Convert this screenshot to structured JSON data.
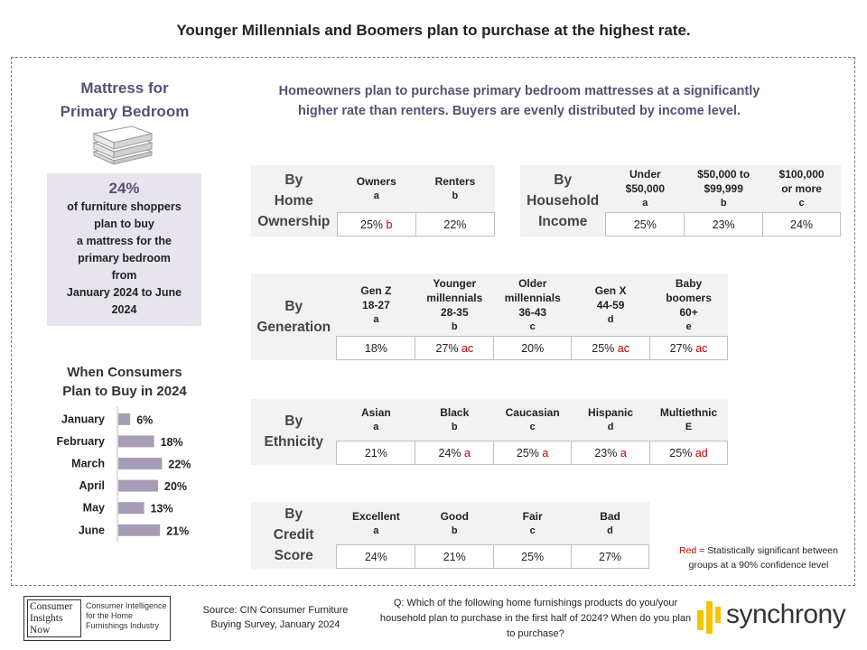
{
  "title": "Younger Millennials and Boomers plan to purchase at the highest rate.",
  "left_panel": {
    "title_line1": "Mattress for",
    "title_line2": "Primary  Bedroom",
    "stat_pct": "24%",
    "stat_text": "of furniture shoppers\nplan to buy\na mattress for the\nprimary bedroom\nfrom\nJanuary 2024 to June\n2024",
    "timing_title_line1": "When Consumers",
    "timing_title_line2": "Plan to Buy in 2024"
  },
  "headline_line1": "Homeowners plan to purchase primary bedroom mattresses at a significantly",
  "headline_line2": "higher rate than renters. Buyers are evenly distributed by income level.",
  "tables": {
    "ownership": {
      "label": [
        "By",
        "Home",
        "Ownership"
      ],
      "cols": [
        {
          "name": [
            "Owners"
          ],
          "letter": "a",
          "value": "25%",
          "sig": "b"
        },
        {
          "name": [
            "Renters"
          ],
          "letter": "b",
          "value": "22%",
          "sig": ""
        }
      ]
    },
    "income": {
      "label": [
        "By",
        "Household",
        "Income"
      ],
      "cols": [
        {
          "name": [
            "Under",
            "$50,000"
          ],
          "letter": "a",
          "value": "25%",
          "sig": ""
        },
        {
          "name": [
            "$50,000  to",
            "$99,999"
          ],
          "letter": "b",
          "value": "23%",
          "sig": ""
        },
        {
          "name": [
            "$100,000",
            "or more"
          ],
          "letter": "c",
          "value": "24%",
          "sig": ""
        }
      ]
    },
    "generation": {
      "label": [
        "By",
        "Generation"
      ],
      "cols": [
        {
          "name": [
            "Gen Z",
            "18-27"
          ],
          "letter": "a",
          "value": "18%",
          "sig": ""
        },
        {
          "name": [
            "Younger",
            "millennials",
            "28-35"
          ],
          "letter": "b",
          "value": "27%",
          "sig": "ac"
        },
        {
          "name": [
            "Older",
            "millennials",
            "36-43"
          ],
          "letter": "c",
          "value": "20%",
          "sig": ""
        },
        {
          "name": [
            "Gen X",
            "44-59"
          ],
          "letter": "d",
          "value": "25%",
          "sig": "ac"
        },
        {
          "name": [
            "Baby",
            "boomers",
            "60+"
          ],
          "letter": "e",
          "value": "27%",
          "sig": "ac"
        }
      ]
    },
    "ethnicity": {
      "label": [
        "By",
        "Ethnicity"
      ],
      "cols": [
        {
          "name": [
            "Asian"
          ],
          "letter": "a",
          "value": "21%",
          "sig": ""
        },
        {
          "name": [
            "Black"
          ],
          "letter": "b",
          "value": "24%",
          "sig": "a"
        },
        {
          "name": [
            "Caucasian"
          ],
          "letter": "c",
          "value": "25%",
          "sig": "a"
        },
        {
          "name": [
            "Hispanic"
          ],
          "letter": "d",
          "value": "23%",
          "sig": "a"
        },
        {
          "name": [
            "Multiethnic"
          ],
          "letter": "E",
          "value": "25%",
          "sig": "ad"
        }
      ]
    },
    "credit": {
      "label": [
        "By",
        "Credit",
        "Score"
      ],
      "cols": [
        {
          "name": [
            "Excellent"
          ],
          "letter": "a",
          "value": "24%",
          "sig": ""
        },
        {
          "name": [
            "Good"
          ],
          "letter": "b",
          "value": "21%",
          "sig": ""
        },
        {
          "name": [
            "Fair"
          ],
          "letter": "c",
          "value": "25%",
          "sig": ""
        },
        {
          "name": [
            "Bad"
          ],
          "letter": "d",
          "value": "27%",
          "sig": ""
        }
      ]
    }
  },
  "legend": {
    "red_word": "Red",
    "text": " = Statistically significant between groups at a 90% confidence level"
  },
  "footer": {
    "cin_left_lines": [
      "Consumer",
      "Insights",
      "Now"
    ],
    "cin_right_text": "Consumer Intelligence for the Home Furnishings Industry",
    "source": "Source:  CIN Consumer Furniture Buying Survey, January 2024",
    "question": "Q: Which of the following home furnishings products do you/your household plan to purchase in the first half of 2024? When do you plan to purchase?",
    "brand": "synchrony"
  },
  "colors": {
    "accent_purple": "#5a4f74",
    "bar": "#a89cb6",
    "significance_red": "#c00000",
    "panel_bg": "#e8e4ee",
    "brand_yellow": "#f5c400"
  },
  "chart_data": {
    "type": "bar",
    "orientation": "horizontal",
    "title": "When Consumers Plan to Buy in 2024",
    "categories": [
      "January",
      "February",
      "March",
      "April",
      "May",
      "June"
    ],
    "values": [
      6,
      18,
      22,
      20,
      13,
      21
    ],
    "value_labels": [
      "6%",
      "18%",
      "22%",
      "20%",
      "13%",
      "21%"
    ],
    "unit": "%",
    "xlim": [
      0,
      25
    ],
    "grid": false
  }
}
